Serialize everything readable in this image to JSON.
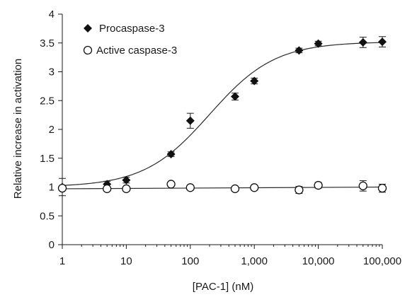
{
  "chart_data": {
    "type": "scatter",
    "x_scale": "log",
    "xlim": [
      1,
      100000
    ],
    "ylim": [
      0,
      4
    ],
    "xlabel": "[PAC-1] (nM)",
    "ylabel": "Relative increase in activation",
    "x_ticks": [
      1,
      10,
      100,
      1000,
      10000,
      100000
    ],
    "x_tick_labels": [
      "1",
      "10",
      "100",
      "1,000",
      "10,000",
      "100,000"
    ],
    "y_ticks": [
      0,
      0.5,
      1,
      1.5,
      2,
      2.5,
      3,
      3.5,
      4
    ],
    "y_tick_labels": [
      "0",
      "0.5",
      "1",
      "1.5",
      "2",
      "2.5",
      "3",
      "3.5",
      "4"
    ],
    "legend_position": "top-left",
    "series": [
      {
        "name": "Procaspase-3",
        "marker": "filled-diamond",
        "color": "#111111",
        "x": [
          1,
          5,
          10,
          50,
          100,
          500,
          1000,
          5000,
          10000,
          50000,
          100000
        ],
        "y": [
          1.0,
          1.05,
          1.12,
          1.57,
          2.15,
          2.57,
          2.84,
          3.37,
          3.49,
          3.51,
          3.52
        ],
        "err": [
          0.15,
          0.05,
          0.05,
          0.04,
          0.13,
          0.06,
          0.05,
          0.04,
          0.04,
          0.09,
          0.09
        ],
        "fit": {
          "bottom": 1.0,
          "top": 3.52,
          "ec50": 200,
          "hill": 0.85
        }
      },
      {
        "name": "Active caspase-3",
        "marker": "open-circle",
        "color": "#111111",
        "x": [
          1,
          5,
          10,
          50,
          100,
          500,
          1000,
          5000,
          10000,
          50000,
          100000
        ],
        "y": [
          0.98,
          0.97,
          0.97,
          1.05,
          0.99,
          0.97,
          0.99,
          0.95,
          1.03,
          1.02,
          0.98
        ],
        "err": [
          0.03,
          0.03,
          0.03,
          0.03,
          0.03,
          0.03,
          0.04,
          0.06,
          0.05,
          0.09,
          0.07
        ],
        "fit": {
          "line": [
            0.97,
            1.0
          ]
        }
      }
    ]
  }
}
